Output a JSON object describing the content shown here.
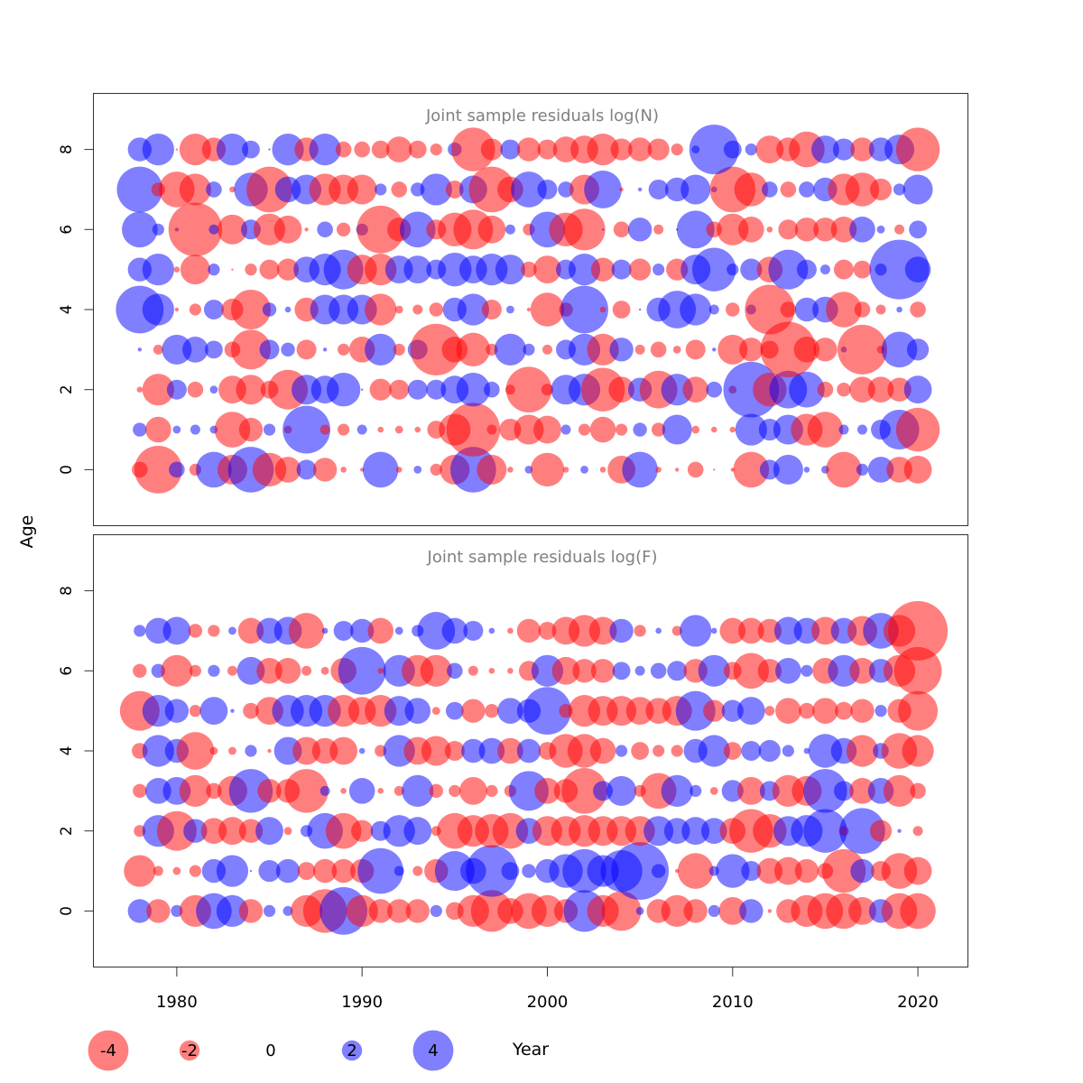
{
  "colors": {
    "negative": "#ff0000",
    "positive": "#0000ff",
    "axis": "#333333",
    "title": "#808080",
    "bubble_opacity": 0.5
  },
  "ylabel": "Age",
  "xlabel": "Year",
  "legend": {
    "values": [
      -4,
      -2,
      0,
      2,
      4
    ],
    "labels": [
      "-4",
      "-2",
      "0",
      "2",
      "4"
    ]
  },
  "chart_data": [
    {
      "type": "scatter",
      "title": "Joint sample residuals log(N)",
      "ylabel": "Age",
      "xlim": [
        1975.5,
        2022.7
      ],
      "ylim": [
        -1.4,
        9.4
      ],
      "x_ticks": [
        "1980",
        "1990",
        "2000",
        "2010",
        "2020"
      ],
      "y_ticks": [
        "0",
        "2",
        "4",
        "6",
        "8"
      ],
      "years": [
        1978,
        1979,
        1980,
        1981,
        1982,
        1983,
        1984,
        1985,
        1986,
        1987,
        1988,
        1989,
        1990,
        1991,
        1992,
        1993,
        1994,
        1995,
        1996,
        1997,
        1998,
        1999,
        2000,
        2001,
        2002,
        2003,
        2004,
        2005,
        2006,
        2007,
        2008,
        2009,
        2010,
        2011,
        2012,
        2013,
        2014,
        2015,
        2016,
        2017,
        2018,
        2019,
        2020
      ],
      "ages": [
        0,
        1,
        2,
        3,
        4,
        5,
        6,
        7,
        8
      ],
      "residuals": [
        [
          -0.8,
          -2.4,
          0.8,
          -0.6,
          1.8,
          -1.5,
          2.3,
          -1.7,
          -1.3,
          1.0,
          -1.2,
          -0.3,
          -0.2,
          1.8,
          -0.3,
          0.4,
          -0.6,
          -1.5,
          2.3,
          -1.5,
          -0.3,
          0.4,
          -1.7,
          -0.3,
          0.4,
          -0.3,
          -1.4,
          1.8,
          -0.3,
          -0.2,
          -0.8,
          -0.1,
          -0.2,
          -1.8,
          1.0,
          1.5,
          0.3,
          0.4,
          -1.8,
          0.6,
          1.3,
          -1.3,
          -1.4
        ],
        [
          0.7,
          -1.3,
          0.4,
          0.5,
          0.4,
          -1.8,
          -1.2,
          0.6,
          -0.4,
          2.4,
          -0.5,
          -0.6,
          0.5,
          -0.3,
          -0.4,
          -0.3,
          -0.9,
          -1.6,
          -2.7,
          -0.5,
          -1.1,
          -1.5,
          -1.4,
          0.5,
          -0.6,
          -1.3,
          -0.6,
          0.7,
          -0.7,
          1.5,
          -0.4,
          -0.3,
          -0.3,
          1.6,
          1.1,
          1.5,
          -1.6,
          -1.8,
          0.5,
          0.5,
          1.0,
          2.0,
          -2.2
        ],
        [
          -0.3,
          -1.6,
          1.0,
          -0.8,
          0.4,
          -1.4,
          -1.5,
          -0.9,
          -2.0,
          1.5,
          1.4,
          1.7,
          0.1,
          -1.1,
          -1.0,
          1.0,
          1.0,
          1.4,
          1.7,
          0.8,
          -0.5,
          -2.3,
          -0.6,
          1.5,
          1.6,
          -2.2,
          -1.3,
          1.2,
          -1.9,
          1.6,
          -1.3,
          0.8,
          -0.4,
          2.8,
          -1.7,
          1.9,
          1.8,
          -0.8,
          -0.7,
          -1.3,
          -1.3,
          -1.2,
          1.4
        ],
        [
          0.2,
          -0.5,
          1.5,
          1.3,
          0.9,
          -0.8,
          -2.0,
          1.0,
          0.7,
          -1.0,
          0.2,
          -0.6,
          -1.3,
          1.6,
          -0.6,
          1.0,
          -2.6,
          -1.3,
          -1.7,
          -0.6,
          1.6,
          0.6,
          -0.5,
          1.0,
          1.6,
          -1.6,
          1.2,
          -0.5,
          -0.8,
          -0.4,
          -1.0,
          0.2,
          -1.5,
          -1.2,
          -0.9,
          -2.8,
          -1.3,
          -1.2,
          0.3,
          -2.5,
          -0.4,
          1.8,
          1.1
        ],
        [
          2.4,
          1.6,
          -0.2,
          -0.6,
          1.0,
          -1.1,
          -2.0,
          0.7,
          0.3,
          -1.2,
          1.5,
          1.5,
          1.5,
          -1.6,
          -0.4,
          -0.5,
          -0.7,
          1.2,
          1.6,
          -1.0,
          0.4,
          -0.2,
          -1.7,
          -0.7,
          2.4,
          -0.3,
          -0.9,
          0.1,
          1.2,
          1.9,
          1.6,
          0.5,
          -0.7,
          0.5,
          -2.5,
          -0.8,
          1.2,
          1.3,
          -1.8,
          -0.8,
          -0.5,
          0.3,
          -0.8
        ],
        [
          1.2,
          1.6,
          -0.3,
          -1.5,
          0.6,
          -0.1,
          -0.6,
          -1.0,
          -1.1,
          1.3,
          1.6,
          2.0,
          -1.5,
          -1.6,
          1.4,
          1.4,
          1.0,
          1.7,
          1.4,
          1.6,
          1.5,
          -0.8,
          -1.4,
          1.0,
          1.6,
          -1.2,
          1.0,
          -1.1,
          0.6,
          -1.1,
          1.5,
          2.2,
          0.6,
          1.1,
          -1.3,
          2.0,
          1.0,
          0.5,
          -1.0,
          -0.9,
          0.6,
          3.0,
          1.3
        ],
        [
          1.8,
          0.6,
          0.2,
          -2.7,
          0.5,
          -1.5,
          1.0,
          -1.6,
          -1.4,
          -0.2,
          0.8,
          -0.7,
          0.6,
          -2.4,
          -1.2,
          1.8,
          -1.0,
          -1.7,
          -2.0,
          -1.4,
          0.5,
          -0.6,
          1.8,
          -1.7,
          -2.1,
          0.1,
          -0.8,
          1.2,
          -0.5,
          0.1,
          1.9,
          -0.8,
          -1.6,
          -1.3,
          -0.3,
          -1.0,
          -1.2,
          -1.2,
          -1.3,
          1.3,
          0.4,
          -0.5,
          0.9
        ],
        [
          2.3,
          -0.7,
          -1.8,
          -1.6,
          0.8,
          -0.3,
          1.7,
          -2.3,
          1.3,
          1.5,
          -1.6,
          -1.5,
          -1.5,
          0.6,
          -0.8,
          0.7,
          1.6,
          -0.9,
          1.4,
          -2.3,
          -1.3,
          1.8,
          1.0,
          0.8,
          -1.5,
          1.9,
          -0.2,
          0.2,
          1.0,
          1.2,
          1.5,
          0.3,
          -2.3,
          -1.7,
          0.8,
          -0.8,
          0.8,
          1.2,
          -1.6,
          -1.7,
          -1.1,
          0.6,
          1.5
        ],
        [
          1.2,
          1.6,
          -0.1,
          -1.6,
          -1.2,
          1.6,
          0.9,
          0.1,
          1.6,
          -1.2,
          1.6,
          -0.8,
          -0.8,
          -0.9,
          -1.3,
          -0.9,
          -0.6,
          0.7,
          -2.2,
          -1.1,
          1.0,
          -1.2,
          -1.0,
          -1.3,
          -1.4,
          -1.6,
          -1.1,
          -1.2,
          -1.1,
          -0.6,
          0.4,
          2.5,
          0.9,
          0.6,
          -1.4,
          -1.2,
          -1.8,
          1.4,
          1.1,
          -1.2,
          1.2,
          1.5,
          -2.2
        ]
      ]
    },
    {
      "type": "scatter",
      "title": "Joint sample residuals log(F)",
      "ylabel": "Age",
      "xlabel": "Year",
      "xlim": [
        1975.5,
        2022.7
      ],
      "ylim": [
        -1.4,
        9.4
      ],
      "x_ticks": [
        "1980",
        "1990",
        "2000",
        "2010",
        "2020"
      ],
      "y_ticks": [
        "0",
        "2",
        "4",
        "6",
        "8"
      ],
      "years": [
        1978,
        1979,
        1980,
        1981,
        1982,
        1983,
        1984,
        1985,
        1986,
        1987,
        1988,
        1989,
        1990,
        1991,
        1992,
        1993,
        1994,
        1995,
        1996,
        1997,
        1998,
        1999,
        2000,
        2001,
        2002,
        2003,
        2004,
        2005,
        2006,
        2007,
        2008,
        2009,
        2010,
        2011,
        2012,
        2013,
        2014,
        2015,
        2016,
        2017,
        2018,
        2019,
        2020
      ],
      "ages": [
        0,
        1,
        2,
        3,
        4,
        5,
        6,
        7
      ],
      "residuals": [
        [
          1.2,
          -1.2,
          0.6,
          -1.6,
          1.8,
          1.6,
          -1.2,
          0.6,
          0.5,
          -1.6,
          -2.2,
          2.4,
          -1.6,
          -1.2,
          -1.2,
          -1.2,
          0.6,
          -0.9,
          -1.6,
          -2.1,
          -1.3,
          -1.8,
          -1.6,
          -1.2,
          2.1,
          -1.6,
          -2.0,
          0.4,
          -1.2,
          -1.6,
          -1.2,
          0.6,
          -1.4,
          1.2,
          -0.2,
          -1.2,
          -1.6,
          -1.8,
          -1.8,
          -1.4,
          1.2,
          -1.8,
          -1.8
        ],
        [
          -1.6,
          -0.5,
          -0.4,
          -0.6,
          1.2,
          1.6,
          0.1,
          1.1,
          1.2,
          -0.9,
          -1.2,
          -1.2,
          -1.2,
          2.3,
          0.5,
          -0.5,
          -1.2,
          2.0,
          1.3,
          2.6,
          0.9,
          0.7,
          1.2,
          1.7,
          2.2,
          1.6,
          2.1,
          2.9,
          0.7,
          -0.2,
          -1.8,
          0.5,
          1.7,
          1.0,
          -1.3,
          -1.4,
          -1.2,
          -0.8,
          -2.2,
          1.2,
          -1.0,
          -1.8,
          -1.4
        ],
        [
          -0.6,
          1.6,
          -2.0,
          1.2,
          -1.3,
          -1.4,
          -1.2,
          1.4,
          -0.4,
          0.6,
          1.8,
          -1.8,
          -1.1,
          1.0,
          1.6,
          1.4,
          -0.5,
          -1.8,
          -1.6,
          -1.7,
          -1.8,
          1.3,
          -1.5,
          -1.5,
          -1.6,
          -1.5,
          -1.5,
          -1.5,
          1.5,
          1.3,
          1.4,
          1.3,
          -1.3,
          -2.2,
          -1.7,
          1.5,
          1.6,
          2.2,
          -0.5,
          2.3,
          -1.1,
          0.2,
          -0.5
        ],
        [
          -0.7,
          1.3,
          1.4,
          -1.6,
          -0.8,
          -1.5,
          2.2,
          -1.2,
          -1.2,
          -2.2,
          0.5,
          -0.3,
          1.3,
          -0.3,
          -0.5,
          1.6,
          -0.7,
          -0.6,
          -1.4,
          -0.6,
          -0.6,
          2.0,
          -1.3,
          -1.2,
          -2.3,
          1.0,
          1.5,
          -0.6,
          -1.8,
          1.6,
          0.6,
          -0.4,
          1.1,
          -1.4,
          1.0,
          -1.6,
          -1.5,
          2.2,
          1.0,
          -1.3,
          1.3,
          -1.6,
          -0.8
        ],
        [
          -0.8,
          1.6,
          1.2,
          -1.9,
          -0.4,
          -0.4,
          0.6,
          -0.2,
          1.4,
          -1.4,
          -1.3,
          -1.4,
          0.3,
          -0.6,
          1.6,
          -1.4,
          -1.5,
          -1.0,
          1.2,
          1.3,
          -1.3,
          1.2,
          -0.9,
          -1.7,
          -1.7,
          -1.3,
          0.6,
          -0.9,
          -0.6,
          -0.6,
          1.2,
          1.6,
          -0.9,
          1.0,
          1.1,
          0.6,
          0.3,
          1.7,
          1.3,
          -1.6,
          0.8,
          -1.8,
          -1.6
        ],
        [
          -2.0,
          1.6,
          1.2,
          -0.6,
          1.4,
          0.2,
          -0.8,
          -1.4,
          1.6,
          1.6,
          1.6,
          -1.6,
          -1.4,
          -1.6,
          1.5,
          1.3,
          -0.4,
          0.9,
          -1.2,
          -0.7,
          1.3,
          1.2,
          2.4,
          -0.7,
          -1.6,
          -1.5,
          -1.5,
          -1.4,
          -1.3,
          -1.5,
          2.0,
          -1.1,
          1.1,
          1.4,
          -0.5,
          -1.3,
          -0.8,
          -1.3,
          -0.9,
          -1.2,
          0.6,
          -1.2,
          -2.0
        ],
        [
          -0.7,
          0.7,
          -1.6,
          -0.6,
          0.6,
          -0.5,
          1.4,
          -1.3,
          -1.3,
          -0.5,
          -0.4,
          -1.3,
          2.4,
          -0.3,
          1.6,
          -1.6,
          -1.6,
          0.8,
          -0.5,
          -0.3,
          -0.3,
          -1.0,
          1.6,
          -1.4,
          -1.2,
          -1.2,
          0.9,
          0.5,
          0.8,
          1.0,
          -1.2,
          1.6,
          -0.9,
          -1.8,
          -1.2,
          1.3,
          0.6,
          -1.3,
          1.6,
          -1.3,
          1.2,
          -1.6,
          -2.4
        ],
        [
          0.6,
          1.3,
          1.4,
          -0.7,
          -0.6,
          0.4,
          -1.3,
          1.3,
          1.4,
          -1.8,
          0.3,
          1.0,
          1.2,
          -1.3,
          0.4,
          0.6,
          1.9,
          1.3,
          1.0,
          0.3,
          -0.3,
          -1.2,
          -0.9,
          -1.4,
          -1.6,
          -1.4,
          1.2,
          -0.6,
          0.3,
          -0.5,
          1.6,
          0.3,
          -1.3,
          -1.3,
          -1.2,
          1.4,
          1.3,
          -1.4,
          1.3,
          -1.5,
          1.8,
          -1.6,
          -3.0
        ]
      ]
    }
  ]
}
